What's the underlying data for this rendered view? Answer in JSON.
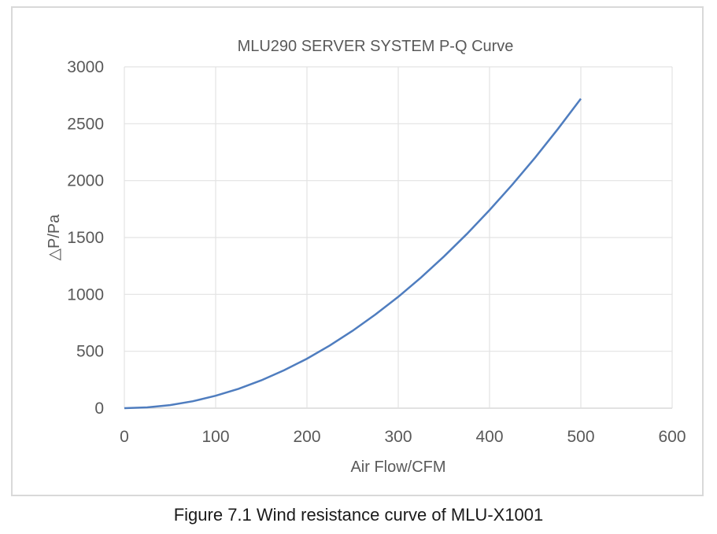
{
  "chart_data": {
    "type": "line",
    "title": "MLU290 SERVER SYSTEM P-Q Curve",
    "xlabel": "Air Flow/CFM",
    "ylabel": "△P/Pa",
    "xlim": [
      0,
      600
    ],
    "ylim": [
      0,
      3000
    ],
    "x_ticks": [
      0,
      100,
      200,
      300,
      400,
      500,
      600
    ],
    "y_ticks": [
      0,
      500,
      1000,
      1500,
      2000,
      2500,
      3000
    ],
    "grid": true,
    "legend": null,
    "series": [
      {
        "name": "P-Q Curve",
        "color": "#4f7dbf",
        "x": [
          0,
          25,
          50,
          75,
          100,
          125,
          150,
          175,
          200,
          225,
          250,
          275,
          300,
          325,
          350,
          375,
          400,
          425,
          450,
          475,
          500
        ],
        "values": [
          0,
          7,
          27,
          61,
          109,
          170,
          245,
          333,
          435,
          551,
          680,
          823,
          979,
          1149,
          1333,
          1530,
          1741,
          1965,
          2203,
          2455,
          2720
        ]
      }
    ]
  },
  "caption": "Figure 7.1 Wind resistance curve of MLU-X1001"
}
